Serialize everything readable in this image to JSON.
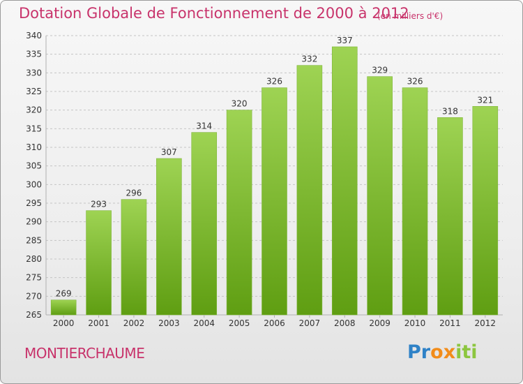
{
  "title": "Dotation Globale de Fonctionnement de 2000 à 2012",
  "subtitle": "(en milliers d'€)",
  "commune": "MONTIERCHAUME",
  "logo": {
    "text": "Proxiti",
    "letters": [
      {
        "char": "P",
        "color": "#2f82c7"
      },
      {
        "char": "r",
        "color": "#2f82c7"
      },
      {
        "char": "o",
        "color": "#f28c1a"
      },
      {
        "char": "x",
        "color": "#f28c1a"
      },
      {
        "char": "i",
        "color": "#8cc63f"
      },
      {
        "char": "t",
        "color": "#8cc63f"
      },
      {
        "char": "i",
        "color": "#8cc63f"
      }
    ]
  },
  "colors": {
    "title": "#c8336b",
    "bar_top": "#9ed353",
    "bar_bottom": "#5f9e12",
    "grid": "#c4c4c4"
  },
  "chart_data": {
    "type": "bar",
    "title": "Dotation Globale de Fonctionnement de 2000 à 2012",
    "subtitle": "(en milliers d'€)",
    "categories": [
      "2000",
      "2001",
      "2002",
      "2003",
      "2004",
      "2005",
      "2006",
      "2007",
      "2008",
      "2009",
      "2010",
      "2011",
      "2012"
    ],
    "values": [
      269,
      293,
      296,
      307,
      314,
      320,
      326,
      332,
      337,
      329,
      326,
      318,
      321
    ],
    "ylim": [
      265,
      340
    ],
    "yticks": [
      265,
      270,
      275,
      280,
      285,
      290,
      295,
      300,
      305,
      310,
      315,
      320,
      325,
      330,
      335,
      340
    ],
    "grid": "horizontal-dashed",
    "data_labels": true,
    "legend": "none"
  }
}
